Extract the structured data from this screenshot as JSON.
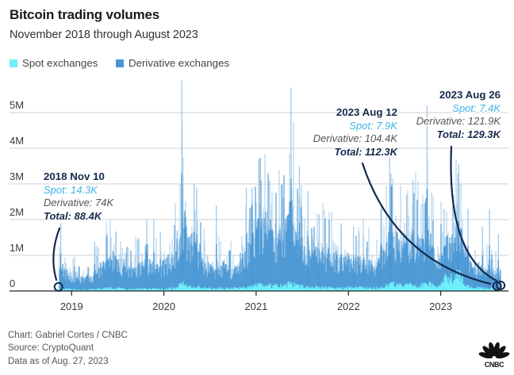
{
  "header": {
    "title": "Bitcoin trading volumes",
    "subtitle": "November 2018 through August 2023"
  },
  "legend": [
    {
      "label": "Spot exchanges",
      "color": "#6ff1fb"
    },
    {
      "label": "Derivative exchanges",
      "color": "#4a97d5"
    }
  ],
  "footer": {
    "credit": "Chart: Gabriel Cortes / CNBC",
    "source": "Source: CryptoQuant",
    "asof": "Data as of Aug. 27, 2023",
    "logo": "CNBC"
  },
  "annotations": [
    {
      "date_label": "2018 Nov 10",
      "spot": "Spot: 14.3K",
      "derivative": "Derivative: 74K",
      "total": "Total: 88.4K",
      "date": "2018-11-10",
      "spot_k": 14.3,
      "derivative_k": 74,
      "total_k": 88.4
    },
    {
      "date_label": "2023 Aug 12",
      "spot": "Spot: 7.9K",
      "derivative": "Derivative: 104.4K",
      "total": "Total: 112.3K",
      "date": "2023-08-12",
      "spot_k": 7.9,
      "derivative_k": 104.4,
      "total_k": 112.3
    },
    {
      "date_label": "2023 Aug 26",
      "spot": "Spot: 7.4K",
      "derivative": "Derivative: 121.9K",
      "total": "Total: 129.3K",
      "date": "2023-08-26",
      "spot_k": 7.4,
      "derivative_k": 121.9,
      "total_k": 129.3
    }
  ],
  "chart_data": {
    "type": "bar",
    "stacked": true,
    "title": "Bitcoin trading volumes",
    "subtitle": "November 2018 through August 2023",
    "xlabel": "",
    "ylabel": "",
    "x_range": [
      "2018-11-10",
      "2023-08-26"
    ],
    "xticks": [
      "2019",
      "2020",
      "2021",
      "2022",
      "2023"
    ],
    "yticks": [
      "0",
      "1M",
      "2M",
      "3M",
      "4M",
      "5M"
    ],
    "ylim_millions": [
      0,
      6
    ],
    "grid": "horizontal",
    "legend_position": "top-left",
    "series_colors": {
      "spot": "#6ff1fb",
      "derivative": "#4a97d5",
      "derivative_peaks": "#b4d4ee"
    },
    "monthly_typical_daily_volume_millions": {
      "months": [
        "2018-11",
        "2018-12",
        "2019-01",
        "2019-02",
        "2019-03",
        "2019-04",
        "2019-05",
        "2019-06",
        "2019-07",
        "2019-08",
        "2019-09",
        "2019-10",
        "2019-11",
        "2019-12",
        "2020-01",
        "2020-02",
        "2020-03",
        "2020-04",
        "2020-05",
        "2020-06",
        "2020-07",
        "2020-08",
        "2020-09",
        "2020-10",
        "2020-11",
        "2020-12",
        "2021-01",
        "2021-02",
        "2021-03",
        "2021-04",
        "2021-05",
        "2021-06",
        "2021-07",
        "2021-08",
        "2021-09",
        "2021-10",
        "2021-11",
        "2021-12",
        "2022-01",
        "2022-02",
        "2022-03",
        "2022-04",
        "2022-05",
        "2022-06",
        "2022-07",
        "2022-08",
        "2022-09",
        "2022-10",
        "2022-11",
        "2022-12",
        "2023-01",
        "2023-02",
        "2023-03",
        "2023-04",
        "2023-05",
        "2023-06",
        "2023-07",
        "2023-08"
      ],
      "derivative": [
        0.55,
        0.45,
        0.3,
        0.3,
        0.28,
        0.5,
        0.7,
        0.75,
        0.65,
        0.5,
        0.5,
        0.6,
        0.6,
        0.5,
        0.7,
        0.85,
        1.6,
        1.1,
        1.0,
        0.55,
        0.5,
        0.6,
        0.5,
        0.55,
        0.95,
        1.1,
        1.7,
        1.5,
        1.2,
        1.4,
        1.8,
        1.2,
        0.8,
        0.8,
        0.9,
        0.9,
        0.8,
        0.75,
        0.7,
        0.7,
        0.6,
        0.55,
        0.8,
        1.3,
        1.2,
        1.1,
        1.2,
        1.0,
        1.2,
        0.55,
        0.9,
        0.9,
        1.2,
        0.7,
        0.5,
        0.55,
        0.45,
        0.4
      ],
      "spot": [
        0.05,
        0.05,
        0.04,
        0.04,
        0.04,
        0.06,
        0.08,
        0.08,
        0.07,
        0.06,
        0.06,
        0.06,
        0.06,
        0.06,
        0.07,
        0.08,
        0.2,
        0.12,
        0.1,
        0.07,
        0.07,
        0.08,
        0.07,
        0.08,
        0.1,
        0.12,
        0.18,
        0.15,
        0.13,
        0.15,
        0.22,
        0.14,
        0.1,
        0.1,
        0.1,
        0.1,
        0.09,
        0.09,
        0.09,
        0.09,
        0.08,
        0.08,
        0.12,
        0.2,
        0.18,
        0.15,
        0.17,
        0.16,
        0.2,
        0.1,
        0.35,
        0.35,
        0.45,
        0.12,
        0.08,
        0.08,
        0.07,
        0.06
      ]
    },
    "peak_days_total_millions": [
      {
        "date": "2018-11-19",
        "total": 1.9
      },
      {
        "date": "2019-04-02",
        "total": 1.38
      },
      {
        "date": "2019-05-17",
        "total": 1.47
      },
      {
        "date": "2019-06-26",
        "total": 1.67
      },
      {
        "date": "2019-09-24",
        "total": 1.45
      },
      {
        "date": "2019-10-25",
        "total": 2.0
      },
      {
        "date": "2019-11-22",
        "total": 2.0
      },
      {
        "date": "2019-12-18",
        "total": 1.64
      },
      {
        "date": "2020-03-12",
        "total": 5.9
      },
      {
        "date": "2020-03-13",
        "total": 4.7
      },
      {
        "date": "2020-04-30",
        "total": 3.0
      },
      {
        "date": "2020-05-10",
        "total": 2.9
      },
      {
        "date": "2020-07-27",
        "total": 2.4
      },
      {
        "date": "2020-11-23",
        "total": 2.9
      },
      {
        "date": "2020-12-16",
        "total": 2.9
      },
      {
        "date": "2021-01-11",
        "total": 3.7
      },
      {
        "date": "2021-01-21",
        "total": 3.1
      },
      {
        "date": "2021-02-23",
        "total": 3.1
      },
      {
        "date": "2021-04-18",
        "total": 2.6
      },
      {
        "date": "2021-05-19",
        "total": 5.7
      },
      {
        "date": "2021-06-21",
        "total": 3.5
      },
      {
        "date": "2021-07-25",
        "total": 2.8
      },
      {
        "date": "2021-09-07",
        "total": 2.15
      },
      {
        "date": "2021-12-04",
        "total": 1.9
      },
      {
        "date": "2022-01-21",
        "total": 1.8
      },
      {
        "date": "2022-03-01",
        "total": 1.6
      },
      {
        "date": "2022-05-09",
        "total": 2.3
      },
      {
        "date": "2022-05-12",
        "total": 2.4
      },
      {
        "date": "2022-06-13",
        "total": 3.75
      },
      {
        "date": "2022-06-18",
        "total": 3.3
      },
      {
        "date": "2022-08-19",
        "total": 2.7
      },
      {
        "date": "2022-09-13",
        "total": 3.1
      },
      {
        "date": "2022-11-08",
        "total": 5.2
      },
      {
        "date": "2022-11-09",
        "total": 3.7
      },
      {
        "date": "2023-01-14",
        "total": 2.3
      },
      {
        "date": "2023-02-17",
        "total": 2.4
      },
      {
        "date": "2023-03-10",
        "total": 3.3
      },
      {
        "date": "2023-03-13",
        "total": 3.55
      },
      {
        "date": "2023-04-19",
        "total": 2.3
      },
      {
        "date": "2023-06-15",
        "total": 1.8
      },
      {
        "date": "2023-07-13",
        "total": 2.3
      },
      {
        "date": "2023-08-17",
        "total": 1.6
      }
    ]
  }
}
